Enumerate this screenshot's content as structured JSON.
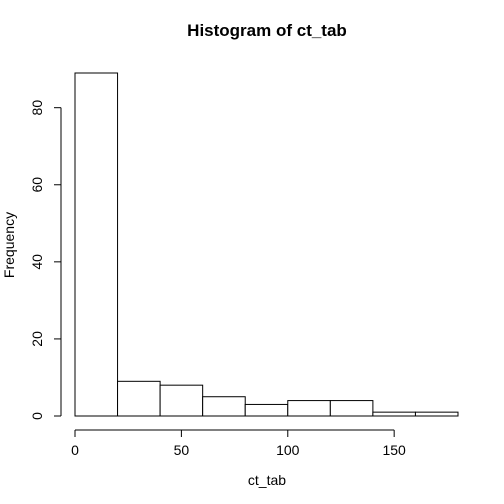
{
  "chart_data": {
    "type": "bar",
    "title": "Histogram of ct_tab",
    "xlabel": "ct_tab",
    "ylabel": "Frequency",
    "bins": [
      {
        "start": 0,
        "end": 20,
        "count": 89
      },
      {
        "start": 20,
        "end": 40,
        "count": 9
      },
      {
        "start": 40,
        "end": 60,
        "count": 8
      },
      {
        "start": 60,
        "end": 80,
        "count": 5
      },
      {
        "start": 80,
        "end": 100,
        "count": 3
      },
      {
        "start": 100,
        "end": 120,
        "count": 4
      },
      {
        "start": 120,
        "end": 140,
        "count": 4
      },
      {
        "start": 140,
        "end": 160,
        "count": 1
      },
      {
        "start": 160,
        "end": 180,
        "count": 1
      }
    ],
    "xticks": [
      0,
      50,
      100,
      150
    ],
    "xtick_labels": [
      "0",
      "50",
      "100",
      "150"
    ],
    "yticks": [
      0,
      20,
      40,
      60,
      80
    ],
    "ytick_labels": [
      "0",
      "20",
      "40",
      "60",
      "80"
    ],
    "grid": false
  }
}
